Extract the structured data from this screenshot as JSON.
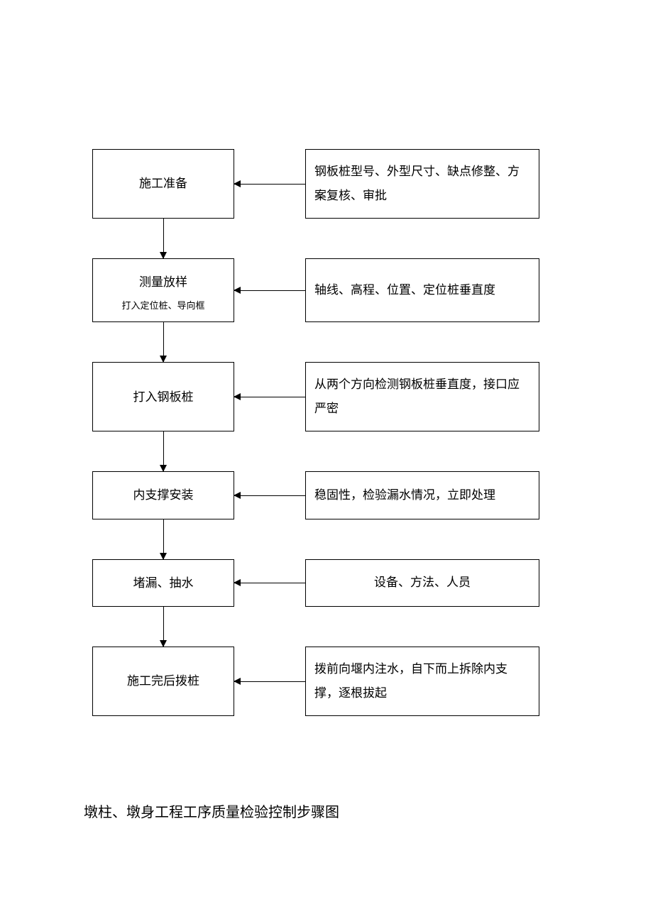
{
  "flowchart": {
    "type": "flowchart",
    "background_color": "#ffffff",
    "border_color": "#000000",
    "text_color": "#000000",
    "left_box_width": 200,
    "right_box_width": 330,
    "connector_width": 100,
    "v_connector_height": 56,
    "main_fontsize": 17,
    "sub_fontsize": 13,
    "caption_fontsize": 20,
    "nodes": [
      {
        "left": {
          "main": "施工准备"
        },
        "right": {
          "text": "钢板桩型号、外型尺寸、缺点修整、方案复核、审批",
          "align": "left"
        }
      },
      {
        "left": {
          "main": "测量放样",
          "sub": "打入定位桩、导向框"
        },
        "right": {
          "text": "轴线、高程、位置、定位桩垂直度",
          "align": "left"
        }
      },
      {
        "left": {
          "main": "打入钢板桩"
        },
        "right": {
          "text": "从两个方向检测钢板桩垂直度，接口应严密",
          "align": "left"
        }
      },
      {
        "left": {
          "main": "内支撑安装"
        },
        "right": {
          "text": "稳固性，检验漏水情况，立即处理",
          "align": "left"
        }
      },
      {
        "left": {
          "main": "堵漏、抽水"
        },
        "right": {
          "text": "设备、方法、人员",
          "align": "center"
        }
      },
      {
        "left": {
          "main": "施工完后拨桩"
        },
        "right": {
          "text": "拨前向堰内注水，自下而上拆除内支撑，逐根拔起",
          "align": "left"
        }
      }
    ]
  },
  "caption": "墩柱、墩身工程工序质量检验控制步骤图"
}
